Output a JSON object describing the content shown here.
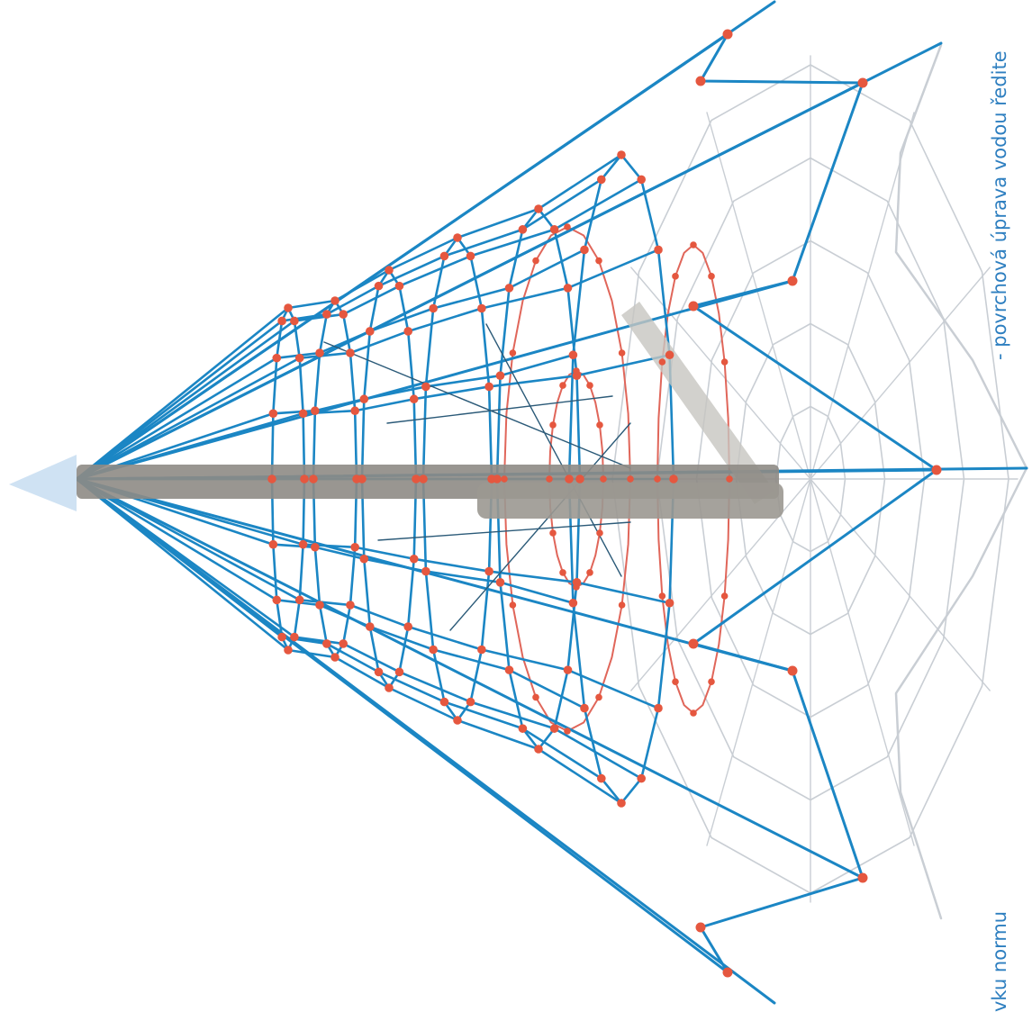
{
  "captions": {
    "right": "- povrchová úprava vodou ředite",
    "bottom": "vku normu"
  },
  "colors": {
    "rope": "#1b86c4",
    "rope_faded": "#c9ced4",
    "red_rope": "#e0665a",
    "node": "#e5573f",
    "mast": "#8e8b85",
    "mast_tip": "#cfe2f3",
    "caption": "#2e7fc0"
  }
}
